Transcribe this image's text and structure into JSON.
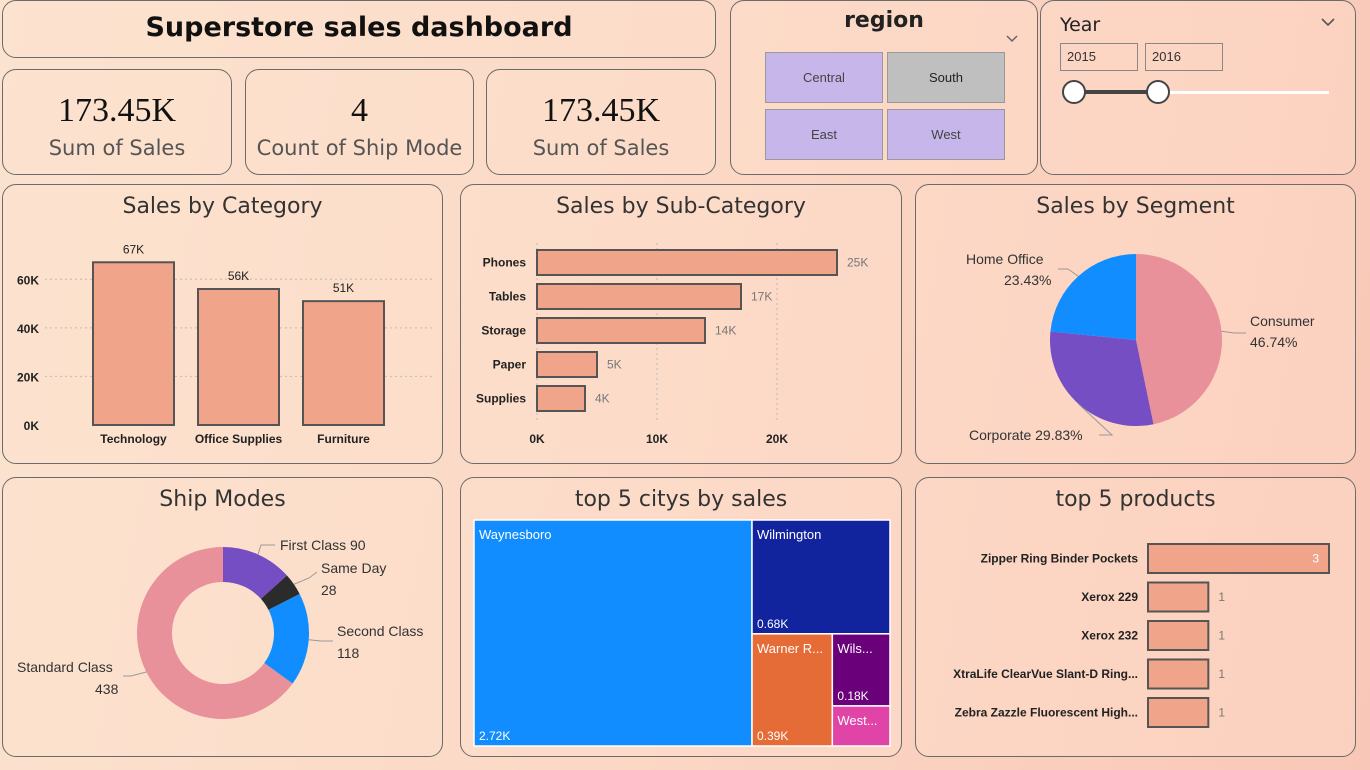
{
  "header": {
    "title": "Superstore sales dashboard"
  },
  "kpis": [
    {
      "value": "173.45K",
      "label": "Sum of Sales"
    },
    {
      "value": "4",
      "label": "Count of Ship Mode"
    },
    {
      "value": "173.45K",
      "label": "Sum of Sales"
    }
  ],
  "region_filter": {
    "title": "region",
    "options": [
      "Central",
      "South",
      "East",
      "West"
    ],
    "selected": "South",
    "icon": "chevron-down-icon"
  },
  "year_filter": {
    "title": "Year",
    "start": "2015",
    "end": "2016",
    "icon": "chevron-down-icon"
  },
  "colors": {
    "bar": "#f0a58a",
    "bar_border": "#555555",
    "home_office": "#118dff",
    "corporate": "#744ec2",
    "consumer": "#e8919a",
    "same_day": "#2b2b2b",
    "waynesboro": "#118dff",
    "wilmington": "#12239e",
    "warner": "#e66c37",
    "wils": "#6b007b",
    "west": "#e044a7"
  },
  "chart_data": [
    {
      "id": "category",
      "type": "bar",
      "title": "Sales by Category",
      "categories": [
        "Technology",
        "Office Supplies",
        "Furniture"
      ],
      "values": [
        67,
        56,
        51
      ],
      "data_labels": [
        "67K",
        "56K",
        "51K"
      ],
      "yticks": [
        "0K",
        "20K",
        "40K",
        "60K"
      ],
      "ytick_values": [
        0,
        20,
        40,
        60
      ],
      "ylim": [
        0,
        70
      ],
      "xlabel": "",
      "ylabel": "",
      "grid": true
    },
    {
      "id": "subcategory",
      "type": "bar",
      "orientation": "horizontal",
      "title": "Sales by Sub-Category",
      "categories": [
        "Phones",
        "Tables",
        "Storage",
        "Paper",
        "Supplies"
      ],
      "values": [
        25,
        17,
        14,
        5,
        4
      ],
      "data_labels": [
        "25K",
        "17K",
        "14K",
        "5K",
        "4K"
      ],
      "xticks": [
        "0K",
        "10K",
        "20K"
      ],
      "xtick_values": [
        0,
        10,
        20
      ],
      "xlim": [
        0,
        26
      ],
      "grid": true
    },
    {
      "id": "segment",
      "type": "pie",
      "title": "Sales by Segment",
      "labels": [
        "Consumer",
        "Corporate",
        "Home Office"
      ],
      "values": [
        46.74,
        29.83,
        23.43
      ],
      "percent_labels": [
        "46.74%",
        "29.83%",
        "23.43%"
      ],
      "colors": [
        "#e8919a",
        "#744ec2",
        "#118dff"
      ]
    },
    {
      "id": "shipmodes",
      "type": "pie",
      "donut": true,
      "title": "Ship Modes",
      "labels": [
        "First Class",
        "Same Day",
        "Second Class",
        "Standard Class"
      ],
      "values": [
        90,
        28,
        118,
        438
      ],
      "colors": [
        "#744ec2",
        "#2b2b2b",
        "#118dff",
        "#e8919a"
      ]
    },
    {
      "id": "cities",
      "type": "treemap",
      "title": "top 5 citys by sales",
      "labels": [
        "Waynesboro",
        "Wilmington",
        "Warner R...",
        "Wils...",
        "West..."
      ],
      "values": [
        2.72,
        0.68,
        0.39,
        0.18,
        0.1
      ],
      "value_labels": [
        "2.72K",
        "0.68K",
        "0.39K",
        "0.18K",
        ""
      ]
    },
    {
      "id": "products",
      "type": "bar",
      "orientation": "horizontal",
      "title": "top 5 products",
      "categories": [
        "Zipper Ring Binder Pockets",
        "Xerox 229",
        "Xerox 232",
        "XtraLife ClearVue Slant-D Ring...",
        "Zebra Zazzle Fluorescent High..."
      ],
      "values": [
        3,
        1,
        1,
        1,
        1
      ],
      "data_labels": [
        "3",
        "1",
        "1",
        "1",
        "1"
      ],
      "xlim": [
        0,
        3
      ]
    }
  ]
}
